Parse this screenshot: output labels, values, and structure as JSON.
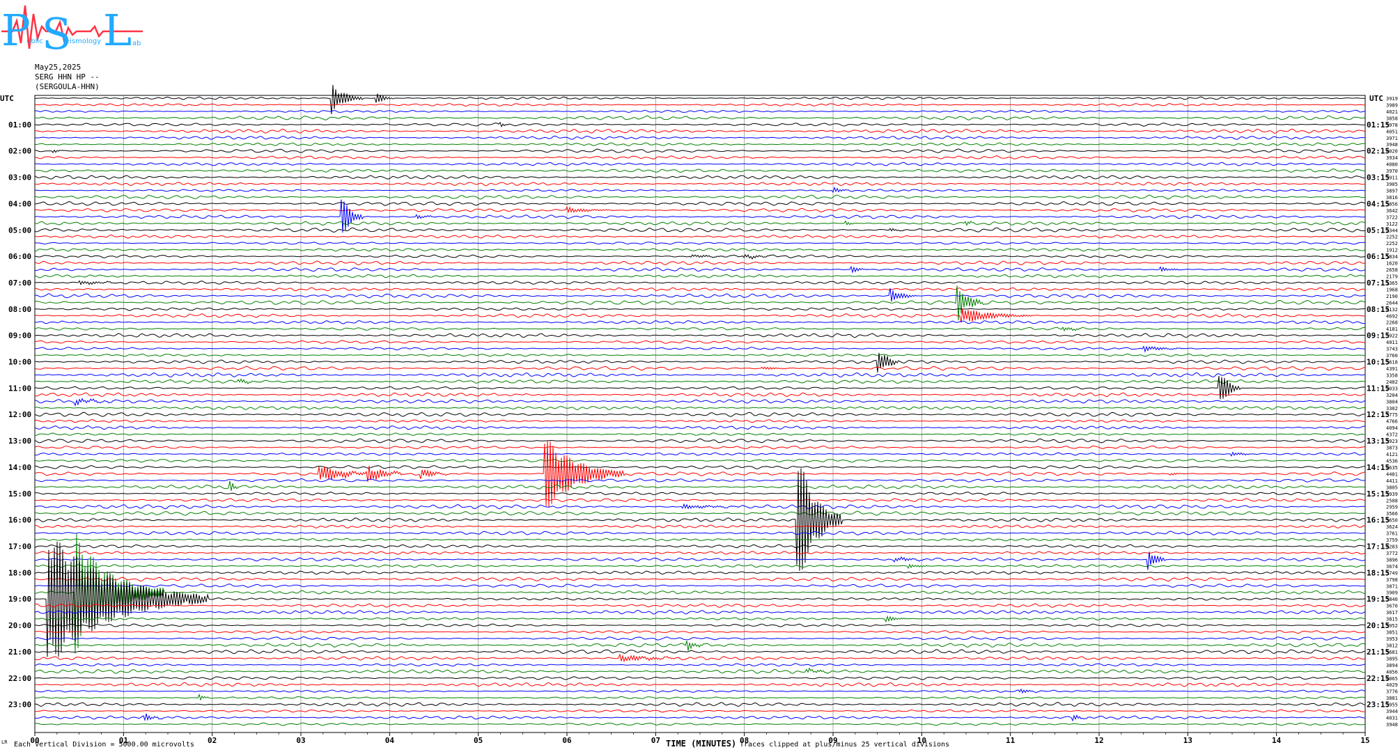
{
  "logo": {
    "text_big": [
      "P",
      "S",
      "L"
    ],
    "text_small": [
      "ublic",
      "eismology",
      "ab"
    ]
  },
  "header": {
    "date": "May25,2025",
    "station": "SERG HHN HP --",
    "name": "(SERGOULA-HHN)"
  },
  "chart_data": {
    "type": "seismogram",
    "utc_left_label": "UTC",
    "utc_right_label": "UTC",
    "left_hour_labels": [
      "01:00",
      "02:00",
      "03:00",
      "04:00",
      "05:00",
      "06:00",
      "07:00",
      "08:00",
      "09:00",
      "10:00",
      "11:00",
      "12:00",
      "13:00",
      "14:00",
      "15:00",
      "16:00",
      "17:00",
      "18:00",
      "19:00",
      "20:00",
      "21:00",
      "22:00",
      "23:00"
    ],
    "right_hour_labels": [
      "01:15",
      "02:15",
      "03:15",
      "04:15",
      "05:15",
      "06:15",
      "07:15",
      "08:15",
      "09:15",
      "10:15",
      "11:15",
      "12:15",
      "13:15",
      "14:15",
      "15:15",
      "16:15",
      "17:15",
      "18:15",
      "19:15",
      "20:15",
      "21:15",
      "22:15",
      "23:15"
    ],
    "x_ticks": [
      "00",
      "01",
      "02",
      "03",
      "04",
      "05",
      "06",
      "07",
      "08",
      "09",
      "10",
      "11",
      "12",
      "13",
      "14",
      "15"
    ],
    "x_range_minutes": [
      0,
      15
    ],
    "traces_per_hour": 4,
    "trace_count": 96,
    "trace_colors": [
      "#000000",
      "#ff0000",
      "#0000ff",
      "#008000"
    ],
    "right_values": [
      "3919",
      "3989",
      "4021",
      "3858",
      "3978",
      "4051",
      "3971",
      "3948",
      "4020",
      "3934",
      "4080",
      "3970",
      "3911",
      "3905",
      "3897",
      "3816",
      "3856",
      "3642",
      "3722",
      "3122",
      "2344",
      "2252",
      "2252",
      "1912",
      "1834",
      "1620",
      "2658",
      "2179",
      "1365",
      "1968",
      "2190",
      "2644",
      "4132",
      "4692",
      "2268",
      "4181",
      "3922",
      "4011",
      "3743",
      "3760",
      "3618",
      "4391",
      "3358",
      "2402",
      "2033",
      "3204",
      "3804",
      "3302",
      "3775",
      "4766",
      "4094",
      "4372",
      "3923",
      "3873",
      "4121",
      "4536",
      "4635",
      "4481",
      "4411",
      "3805",
      "3939",
      "2508",
      "2959",
      "3566",
      "3650",
      "3624",
      "3761",
      "3759",
      "4283",
      "3772",
      "3896",
      "3674",
      "3749",
      "3798",
      "3871",
      "3909",
      "3840",
      "3670",
      "3617",
      "3815",
      "3952",
      "3851",
      "3953",
      "3812",
      "3681",
      "3895",
      "3894",
      "4056",
      "4065",
      "4029",
      "3776",
      "3881",
      "3955",
      "3944",
      "4031",
      "3948"
    ],
    "events": [
      {
        "trace": 0,
        "minute": 3.35,
        "amp": 22,
        "dur": 0.35
      },
      {
        "trace": 0,
        "minute": 3.85,
        "amp": 8,
        "dur": 0.2
      },
      {
        "trace": 4,
        "minute": 5.25,
        "amp": 3,
        "dur": 0.1
      },
      {
        "trace": 8,
        "minute": 0.2,
        "amp": 3,
        "dur": 0.1
      },
      {
        "trace": 14,
        "minute": 9.0,
        "amp": 4,
        "dur": 0.2
      },
      {
        "trace": 18,
        "minute": 3.45,
        "amp": 34,
        "dur": 0.25
      },
      {
        "trace": 18,
        "minute": 4.3,
        "amp": 3,
        "dur": 0.3
      },
      {
        "trace": 17,
        "minute": 6.0,
        "amp": 4,
        "dur": 0.6
      },
      {
        "trace": 19,
        "minute": 9.15,
        "amp": 4,
        "dur": 0.1
      },
      {
        "trace": 19,
        "minute": 10.5,
        "amp": 4,
        "dur": 0.1
      },
      {
        "trace": 20,
        "minute": 9.65,
        "amp": 2,
        "dur": 0.2
      },
      {
        "trace": 24,
        "minute": 7.4,
        "amp": 2,
        "dur": 0.6
      },
      {
        "trace": 24,
        "minute": 8.0,
        "amp": 3,
        "dur": 0.4
      },
      {
        "trace": 26,
        "minute": 9.2,
        "amp": 5,
        "dur": 0.2
      },
      {
        "trace": 26,
        "minute": 12.7,
        "amp": 3,
        "dur": 0.3
      },
      {
        "trace": 28,
        "minute": 0.5,
        "amp": 3,
        "dur": 0.5
      },
      {
        "trace": 30,
        "minute": 9.65,
        "amp": 10,
        "dur": 0.3
      },
      {
        "trace": 31,
        "minute": 10.4,
        "amp": 26,
        "dur": 0.3
      },
      {
        "trace": 33,
        "minute": 10.45,
        "amp": 12,
        "dur": 0.8
      },
      {
        "trace": 35,
        "minute": 11.6,
        "amp": 3,
        "dur": 0.3
      },
      {
        "trace": 38,
        "minute": 12.5,
        "amp": 4,
        "dur": 0.5
      },
      {
        "trace": 40,
        "minute": 9.5,
        "amp": 22,
        "dur": 0.25
      },
      {
        "trace": 41,
        "minute": 8.2,
        "amp": 2,
        "dur": 0.5
      },
      {
        "trace": 43,
        "minute": 2.3,
        "amp": 3,
        "dur": 0.3
      },
      {
        "trace": 44,
        "minute": 13.35,
        "amp": 30,
        "dur": 0.25
      },
      {
        "trace": 46,
        "minute": 0.45,
        "amp": 4,
        "dur": 0.5
      },
      {
        "trace": 54,
        "minute": 13.5,
        "amp": 3,
        "dur": 0.3
      },
      {
        "trace": 57,
        "minute": 3.2,
        "amp": 14,
        "dur": 0.6
      },
      {
        "trace": 57,
        "minute": 3.75,
        "amp": 14,
        "dur": 0.4
      },
      {
        "trace": 57,
        "minute": 4.35,
        "amp": 9,
        "dur": 0.3
      },
      {
        "trace": 57,
        "minute": 5.75,
        "amp": 56,
        "dur": 0.9
      },
      {
        "trace": 57,
        "minute": 12.8,
        "amp": 2,
        "dur": 0.2
      },
      {
        "trace": 59,
        "minute": 2.2,
        "amp": 9,
        "dur": 0.1
      },
      {
        "trace": 64,
        "minute": 8.6,
        "amp": 100,
        "dur": 0.5
      },
      {
        "trace": 62,
        "minute": 7.3,
        "amp": 3,
        "dur": 0.8
      },
      {
        "trace": 70,
        "minute": 9.7,
        "amp": 3,
        "dur": 0.5
      },
      {
        "trace": 71,
        "minute": 9.85,
        "amp": 3,
        "dur": 0.3
      },
      {
        "trace": 70,
        "minute": 12.55,
        "amp": 18,
        "dur": 0.2
      },
      {
        "trace": 76,
        "minute": 0.15,
        "amp": 100,
        "dur": 1.8
      },
      {
        "trace": 75,
        "minute": 0.45,
        "amp": 90,
        "dur": 1.0
      },
      {
        "trace": 79,
        "minute": 9.6,
        "amp": 4,
        "dur": 0.3
      },
      {
        "trace": 83,
        "minute": 7.35,
        "amp": 8,
        "dur": 0.2
      },
      {
        "trace": 85,
        "minute": 6.6,
        "amp": 5,
        "dur": 0.8
      },
      {
        "trace": 87,
        "minute": 8.7,
        "amp": 3,
        "dur": 0.4
      },
      {
        "trace": 91,
        "minute": 1.85,
        "amp": 6,
        "dur": 0.1
      },
      {
        "trace": 90,
        "minute": 11.1,
        "amp": 3,
        "dur": 0.3
      },
      {
        "trace": 94,
        "minute": 1.25,
        "amp": 5,
        "dur": 0.2
      },
      {
        "trace": 94,
        "minute": 11.7,
        "amp": 4,
        "dur": 0.2
      }
    ]
  },
  "footer": {
    "left_mark": "LR",
    "scale_note": "Each Vertical Division = 5000.00 microvolts",
    "axis_title": "TIME (MINUTES)",
    "clip_note": "Traces clipped at plus/minus 25 vertical divisions"
  }
}
